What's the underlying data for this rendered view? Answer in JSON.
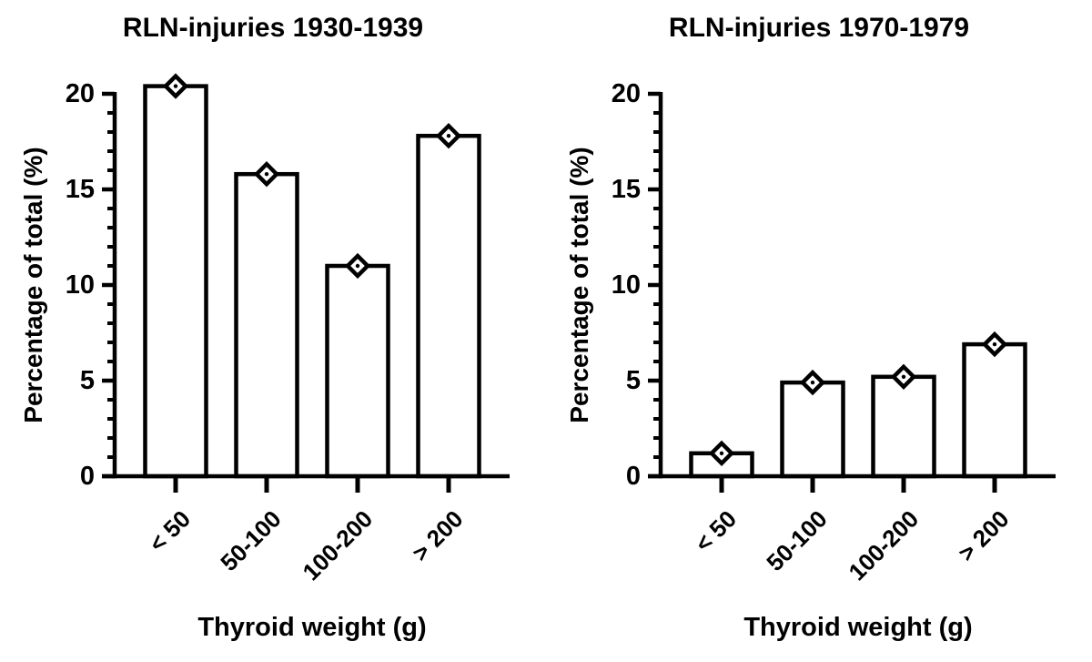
{
  "figure": {
    "background": "#ffffff",
    "ink_color": "#000000"
  },
  "chart_data": [
    {
      "type": "bar",
      "title": "RLN-injuries 1930-1939",
      "xlabel": "Thyroid weight (g)",
      "ylabel": "Percentage of total (%)",
      "categories": [
        "< 50",
        "50-100",
        "100-200",
        "> 200"
      ],
      "values": [
        20.4,
        15.8,
        11.0,
        17.8
      ],
      "ylim": [
        0,
        20
      ],
      "y_major_ticks": [
        0,
        5,
        10,
        15,
        20
      ],
      "y_minor_tick_interval": 1,
      "bar_fill": "#ffffff",
      "bar_stroke": "#000000",
      "marker": "open-diamond-with-center-dot",
      "grid": false,
      "legend": "none"
    },
    {
      "type": "bar",
      "title": "RLN-injuries 1970-1979",
      "xlabel": "Thyroid weight (g)",
      "ylabel": "Percentage of total (%)",
      "categories": [
        "< 50",
        "50-100",
        "100-200",
        "> 200"
      ],
      "values": [
        1.2,
        4.9,
        5.2,
        6.9
      ],
      "ylim": [
        0,
        20
      ],
      "y_major_ticks": [
        0,
        5,
        10,
        15,
        20
      ],
      "y_minor_tick_interval": 1,
      "bar_fill": "#ffffff",
      "bar_stroke": "#000000",
      "marker": "open-diamond-with-center-dot",
      "grid": false,
      "legend": "none"
    }
  ]
}
